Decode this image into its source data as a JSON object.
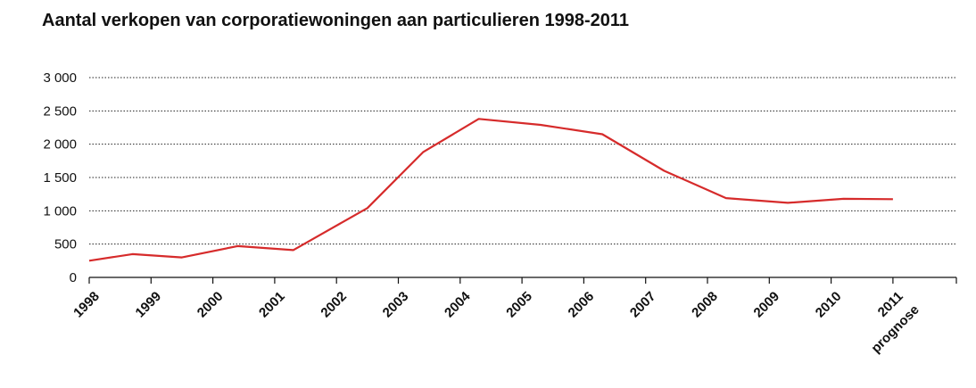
{
  "chart_data": {
    "type": "line",
    "title": "Aantal verkopen van corporatiewoningen aan particulieren 1998-2011",
    "xlabel": "",
    "ylabel": "",
    "categories": [
      "1998",
      "1999",
      "2000",
      "2001",
      "2002",
      "2003",
      "2004",
      "2005",
      "2006",
      "2007",
      "2008",
      "2009",
      "2010",
      "2011"
    ],
    "category_sublabels": {
      "2011": "prognose"
    },
    "y_ticks": [
      "0",
      "500",
      "1 000",
      "1 500",
      "2 000",
      "2 500",
      "3 000"
    ],
    "ylim": [
      0,
      3000
    ],
    "grid": true,
    "grid_style": "dotted",
    "line_color": "#d62b2b",
    "series": [
      {
        "x": [
          1998.0,
          1998.7,
          1999.5,
          2000.4,
          2001.3,
          2002.5,
          2003.4,
          2004.3,
          2005.3,
          2006.3,
          2007.3,
          2008.3,
          2009.3,
          2010.2,
          2011.0
        ],
        "values": [
          250,
          350,
          300,
          470,
          410,
          1040,
          1880,
          2380,
          2290,
          2150,
          1600,
          1190,
          1120,
          1180,
          1175
        ]
      }
    ]
  }
}
